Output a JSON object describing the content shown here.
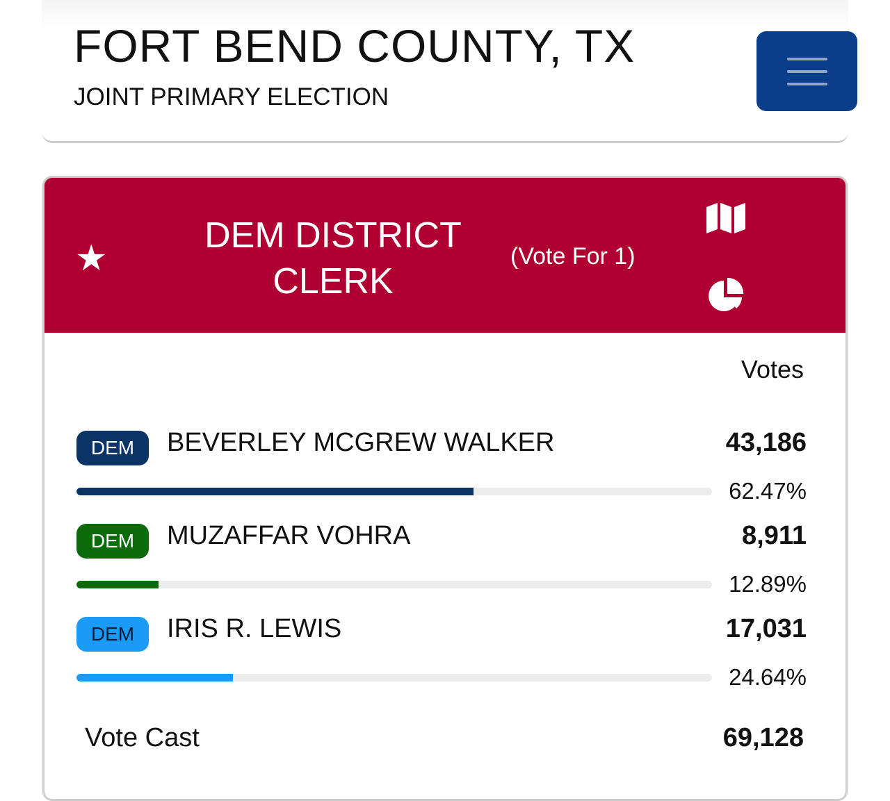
{
  "header": {
    "title": "FORT BEND COUNTY, TX",
    "subtitle": "JOINT PRIMARY ELECTION",
    "menu_icon": "hamburger-icon"
  },
  "race": {
    "title_line1": "DEM DISTRICT",
    "title_line2": "CLERK",
    "vote_for": "(Vote For 1)",
    "star_icon": "★",
    "colors": {
      "header": "#b00032"
    }
  },
  "columns": {
    "votes": "Votes"
  },
  "candidates": [
    {
      "party": "DEM",
      "name": "BEVERLEY MCGREW WALKER",
      "votes": "43,186",
      "percent": "62.47%",
      "share": 62.47,
      "color": "#0b3466",
      "badge_text": "#ffffff"
    },
    {
      "party": "DEM",
      "name": "MUZAFFAR VOHRA",
      "votes": "8,911",
      "percent": "12.89%",
      "share": 12.89,
      "color": "#0b6b0b",
      "badge_text": "#ffffff"
    },
    {
      "party": "DEM",
      "name": "IRIS R. LEWIS",
      "votes": "17,031",
      "percent": "24.64%",
      "share": 24.64,
      "color": "#1a9bf5",
      "badge_text": "#0a1a3a"
    }
  ],
  "totals": {
    "label": "Vote Cast",
    "value": "69,128"
  }
}
